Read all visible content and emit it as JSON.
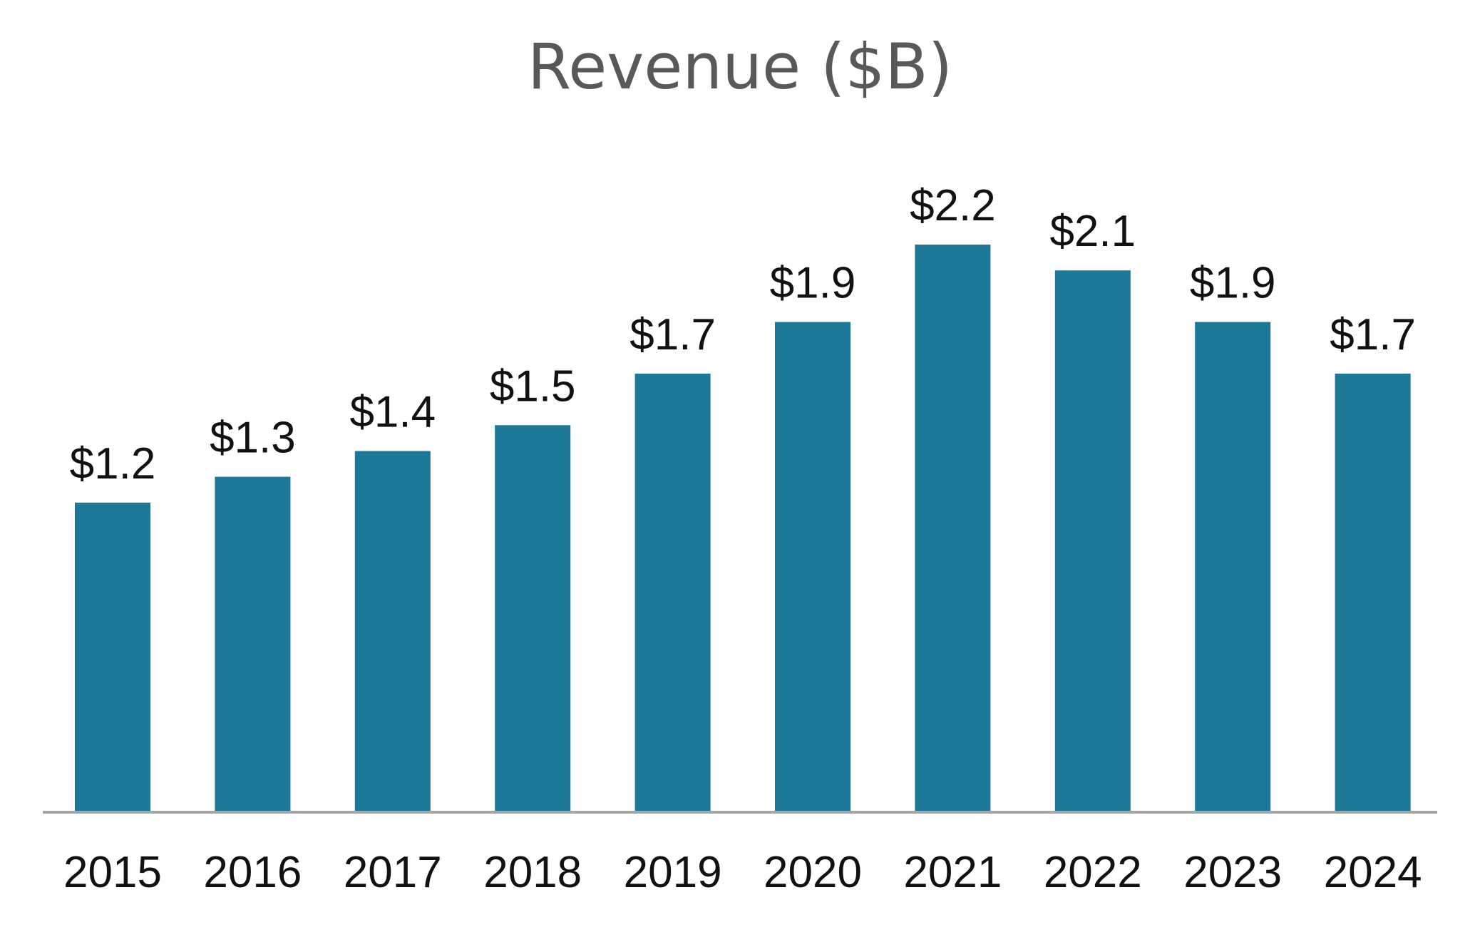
{
  "chart_data": {
    "type": "bar",
    "title": "Revenue ($B)",
    "xlabel": "",
    "ylabel": "",
    "categories": [
      "2015",
      "2016",
      "2017",
      "2018",
      "2019",
      "2020",
      "2021",
      "2022",
      "2023",
      "2024"
    ],
    "values": [
      1.2,
      1.3,
      1.4,
      1.5,
      1.7,
      1.9,
      2.2,
      2.1,
      1.9,
      1.7
    ],
    "data_labels": [
      "$1.2",
      "$1.3",
      "$1.4",
      "$1.5",
      "$1.7",
      "$1.9",
      "$2.2",
      "$2.1",
      "$1.9",
      "$1.7"
    ],
    "ylim": [
      0,
      2.2
    ],
    "grid": false,
    "legend": "none",
    "colors": {
      "bar": "#1c7896",
      "axis": "#a6a6a6",
      "title": "#595959",
      "text": "#111111"
    }
  }
}
